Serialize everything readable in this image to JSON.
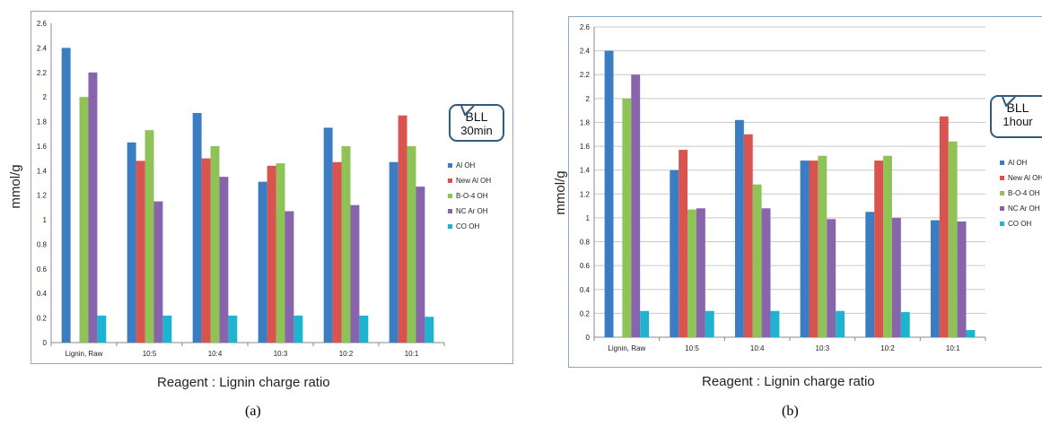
{
  "colors": {
    "Al OH": "#3a7dc2",
    "New Al OH": "#d9534f",
    "B-O-4 OH": "#8fc257",
    "NC Ar OH": "#8864ad",
    "CO OH": "#1eb4cf"
  },
  "chart_data": [
    {
      "type": "bar",
      "panel_label": "(a)",
      "callout": [
        "BLL",
        "30min"
      ],
      "ylabel": "mmol/g",
      "xlabel": "Reagent : Lignin charge ratio",
      "ylim": [
        0,
        2.6
      ],
      "yticks": [
        "0",
        "0.2",
        "0.4",
        "0.6",
        "0.8",
        "1",
        "1.2",
        "1.4",
        "1.6",
        "1.8",
        "2",
        "2.2",
        "2.4",
        "2.6"
      ],
      "categories": [
        "Lignin, Raw",
        "10:5",
        "10:4",
        "10:3",
        "10:2",
        "10:1"
      ],
      "series": [
        {
          "name": "Al OH",
          "values": [
            2.4,
            1.63,
            1.87,
            1.31,
            1.75,
            1.47
          ]
        },
        {
          "name": "New Al OH",
          "values": [
            0,
            1.48,
            1.5,
            1.44,
            1.47,
            1.85
          ]
        },
        {
          "name": "B-O-4 OH",
          "values": [
            2.0,
            1.73,
            1.6,
            1.46,
            1.6,
            1.6
          ]
        },
        {
          "name": "NC Ar OH",
          "values": [
            2.2,
            1.15,
            1.35,
            1.07,
            1.12,
            1.27
          ]
        },
        {
          "name": "CO OH",
          "values": [
            0.22,
            0.22,
            0.22,
            0.22,
            0.22,
            0.21
          ]
        }
      ],
      "legend_position": "right",
      "grid": false
    },
    {
      "type": "bar",
      "panel_label": "(b)",
      "callout": [
        "BLL",
        "1hour"
      ],
      "ylabel": "mmol/g",
      "xlabel": "Reagent : Lignin charge ratio",
      "ylim": [
        0,
        2.6
      ],
      "yticks": [
        "0",
        "0.2",
        "0.4",
        "0.6",
        "0.8",
        "1",
        "1.2",
        "1.4",
        "1.6",
        "1.8",
        "2",
        "2.2",
        "2.4",
        "2.6"
      ],
      "categories": [
        "Lignin, Raw",
        "10:5",
        "10:4",
        "10:3",
        "10:2",
        "10:1"
      ],
      "series": [
        {
          "name": "Al OH",
          "values": [
            2.4,
            1.4,
            1.82,
            1.48,
            1.05,
            0.98
          ]
        },
        {
          "name": "New Al OH",
          "values": [
            0,
            1.57,
            1.7,
            1.48,
            1.48,
            1.85
          ]
        },
        {
          "name": "B-O-4 OH",
          "values": [
            2.0,
            1.07,
            1.28,
            1.52,
            1.52,
            1.64
          ]
        },
        {
          "name": "NC Ar OH",
          "values": [
            2.2,
            1.08,
            1.08,
            0.99,
            1.0,
            0.97
          ]
        },
        {
          "name": "CO OH",
          "values": [
            0.22,
            0.22,
            0.22,
            0.22,
            0.21,
            0.06
          ]
        }
      ],
      "legend_position": "right",
      "grid": true
    }
  ]
}
